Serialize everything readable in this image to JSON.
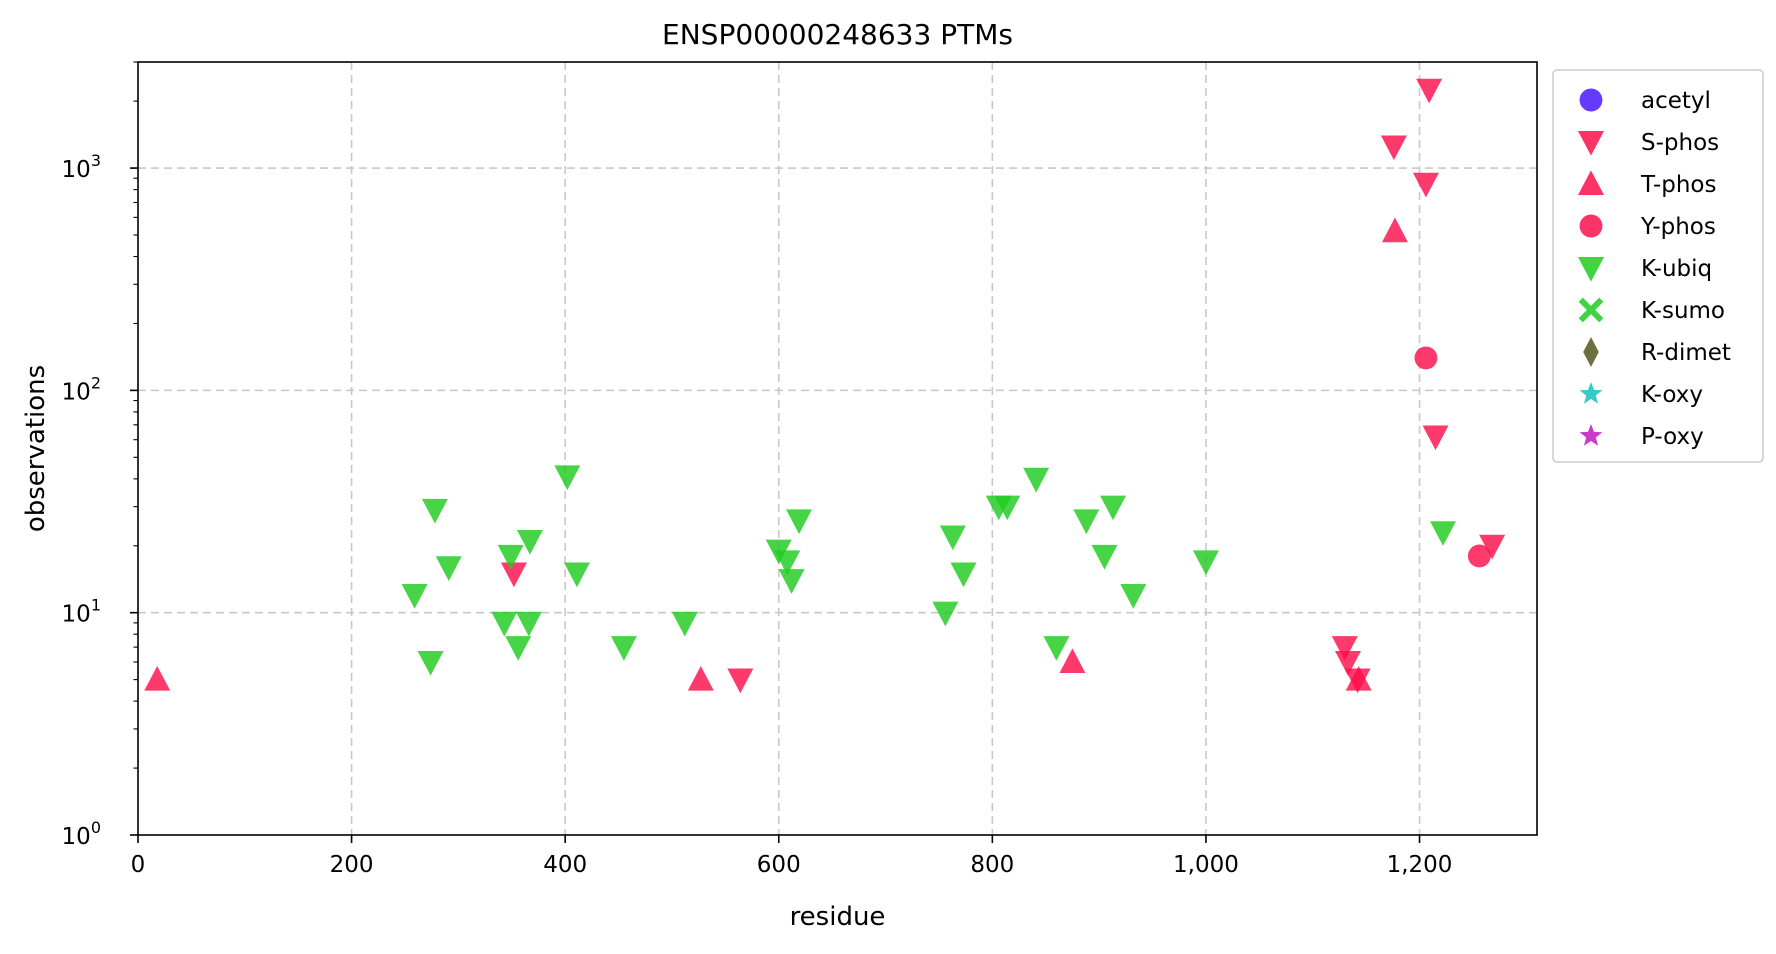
{
  "chart_data": {
    "type": "scatter",
    "title": "ENSP00000248633 PTMs",
    "xlabel": "residue",
    "ylabel": "observations",
    "xlim": [
      0,
      1310
    ],
    "ylim": [
      1,
      3000
    ],
    "y_scale": "log",
    "grid": true,
    "legend_position": "top-right",
    "x_ticks": [
      {
        "value": 0,
        "label": "0"
      },
      {
        "value": 200,
        "label": "200"
      },
      {
        "value": 400,
        "label": "400"
      },
      {
        "value": 600,
        "label": "600"
      },
      {
        "value": 800,
        "label": "800"
      },
      {
        "value": 1000,
        "label": "1,000"
      },
      {
        "value": 1200,
        "label": "1,200"
      }
    ],
    "y_ticks": [
      {
        "value": 1,
        "base": "10",
        "exp": "0"
      },
      {
        "value": 10,
        "base": "10",
        "exp": "1"
      },
      {
        "value": 100,
        "base": "10",
        "exp": "2"
      },
      {
        "value": 1000,
        "base": "10",
        "exp": "3"
      }
    ],
    "series": [
      {
        "name": "acetyl",
        "marker": "circle",
        "color": "#4b17fb",
        "points": []
      },
      {
        "name": "S-phos",
        "marker": "triangle-down",
        "color": "#fc0f4b",
        "points": [
          {
            "x": 352,
            "y": 15
          },
          {
            "x": 564,
            "y": 5
          },
          {
            "x": 1130,
            "y": 7
          },
          {
            "x": 1133,
            "y": 6
          },
          {
            "x": 1142,
            "y": 5
          },
          {
            "x": 1176,
            "y": 1250
          },
          {
            "x": 1206,
            "y": 850
          },
          {
            "x": 1209,
            "y": 2250
          },
          {
            "x": 1215,
            "y": 62
          },
          {
            "x": 1268,
            "y": 20
          }
        ]
      },
      {
        "name": "T-phos",
        "marker": "triangle-up",
        "color": "#fc0f4b",
        "points": [
          {
            "x": 18,
            "y": 5
          },
          {
            "x": 527,
            "y": 5
          },
          {
            "x": 875,
            "y": 6
          },
          {
            "x": 1143,
            "y": 5
          },
          {
            "x": 1177,
            "y": 520
          }
        ]
      },
      {
        "name": "Y-phos",
        "marker": "circle",
        "color": "#fc0f4b",
        "points": [
          {
            "x": 1206,
            "y": 140
          },
          {
            "x": 1256,
            "y": 18
          }
        ]
      },
      {
        "name": "K-ubiq",
        "marker": "triangle-down",
        "color": "#1fcc1f",
        "points": [
          {
            "x": 259,
            "y": 12
          },
          {
            "x": 274,
            "y": 6
          },
          {
            "x": 278,
            "y": 29
          },
          {
            "x": 291,
            "y": 16
          },
          {
            "x": 343,
            "y": 9
          },
          {
            "x": 349,
            "y": 18
          },
          {
            "x": 356,
            "y": 7
          },
          {
            "x": 366,
            "y": 9
          },
          {
            "x": 367,
            "y": 21
          },
          {
            "x": 402,
            "y": 41
          },
          {
            "x": 411,
            "y": 15
          },
          {
            "x": 455,
            "y": 7
          },
          {
            "x": 512,
            "y": 9
          },
          {
            "x": 600,
            "y": 19
          },
          {
            "x": 608,
            "y": 17
          },
          {
            "x": 612,
            "y": 14
          },
          {
            "x": 619,
            "y": 26
          },
          {
            "x": 756,
            "y": 10
          },
          {
            "x": 763,
            "y": 22
          },
          {
            "x": 773,
            "y": 15
          },
          {
            "x": 806,
            "y": 30
          },
          {
            "x": 814,
            "y": 30
          },
          {
            "x": 841,
            "y": 40
          },
          {
            "x": 860,
            "y": 7
          },
          {
            "x": 888,
            "y": 26
          },
          {
            "x": 905,
            "y": 18
          },
          {
            "x": 913,
            "y": 30
          },
          {
            "x": 932,
            "y": 12
          },
          {
            "x": 1000,
            "y": 17
          },
          {
            "x": 1222,
            "y": 23
          }
        ]
      },
      {
        "name": "K-sumo",
        "marker": "x",
        "color": "#1fcc1f",
        "points": []
      },
      {
        "name": "R-dimet",
        "marker": "diamond",
        "color": "#52571c",
        "points": []
      },
      {
        "name": "K-oxy",
        "marker": "star",
        "color": "#17bfbf",
        "points": []
      },
      {
        "name": "P-oxy",
        "marker": "star",
        "color": "#bf17bf",
        "points": []
      }
    ]
  }
}
